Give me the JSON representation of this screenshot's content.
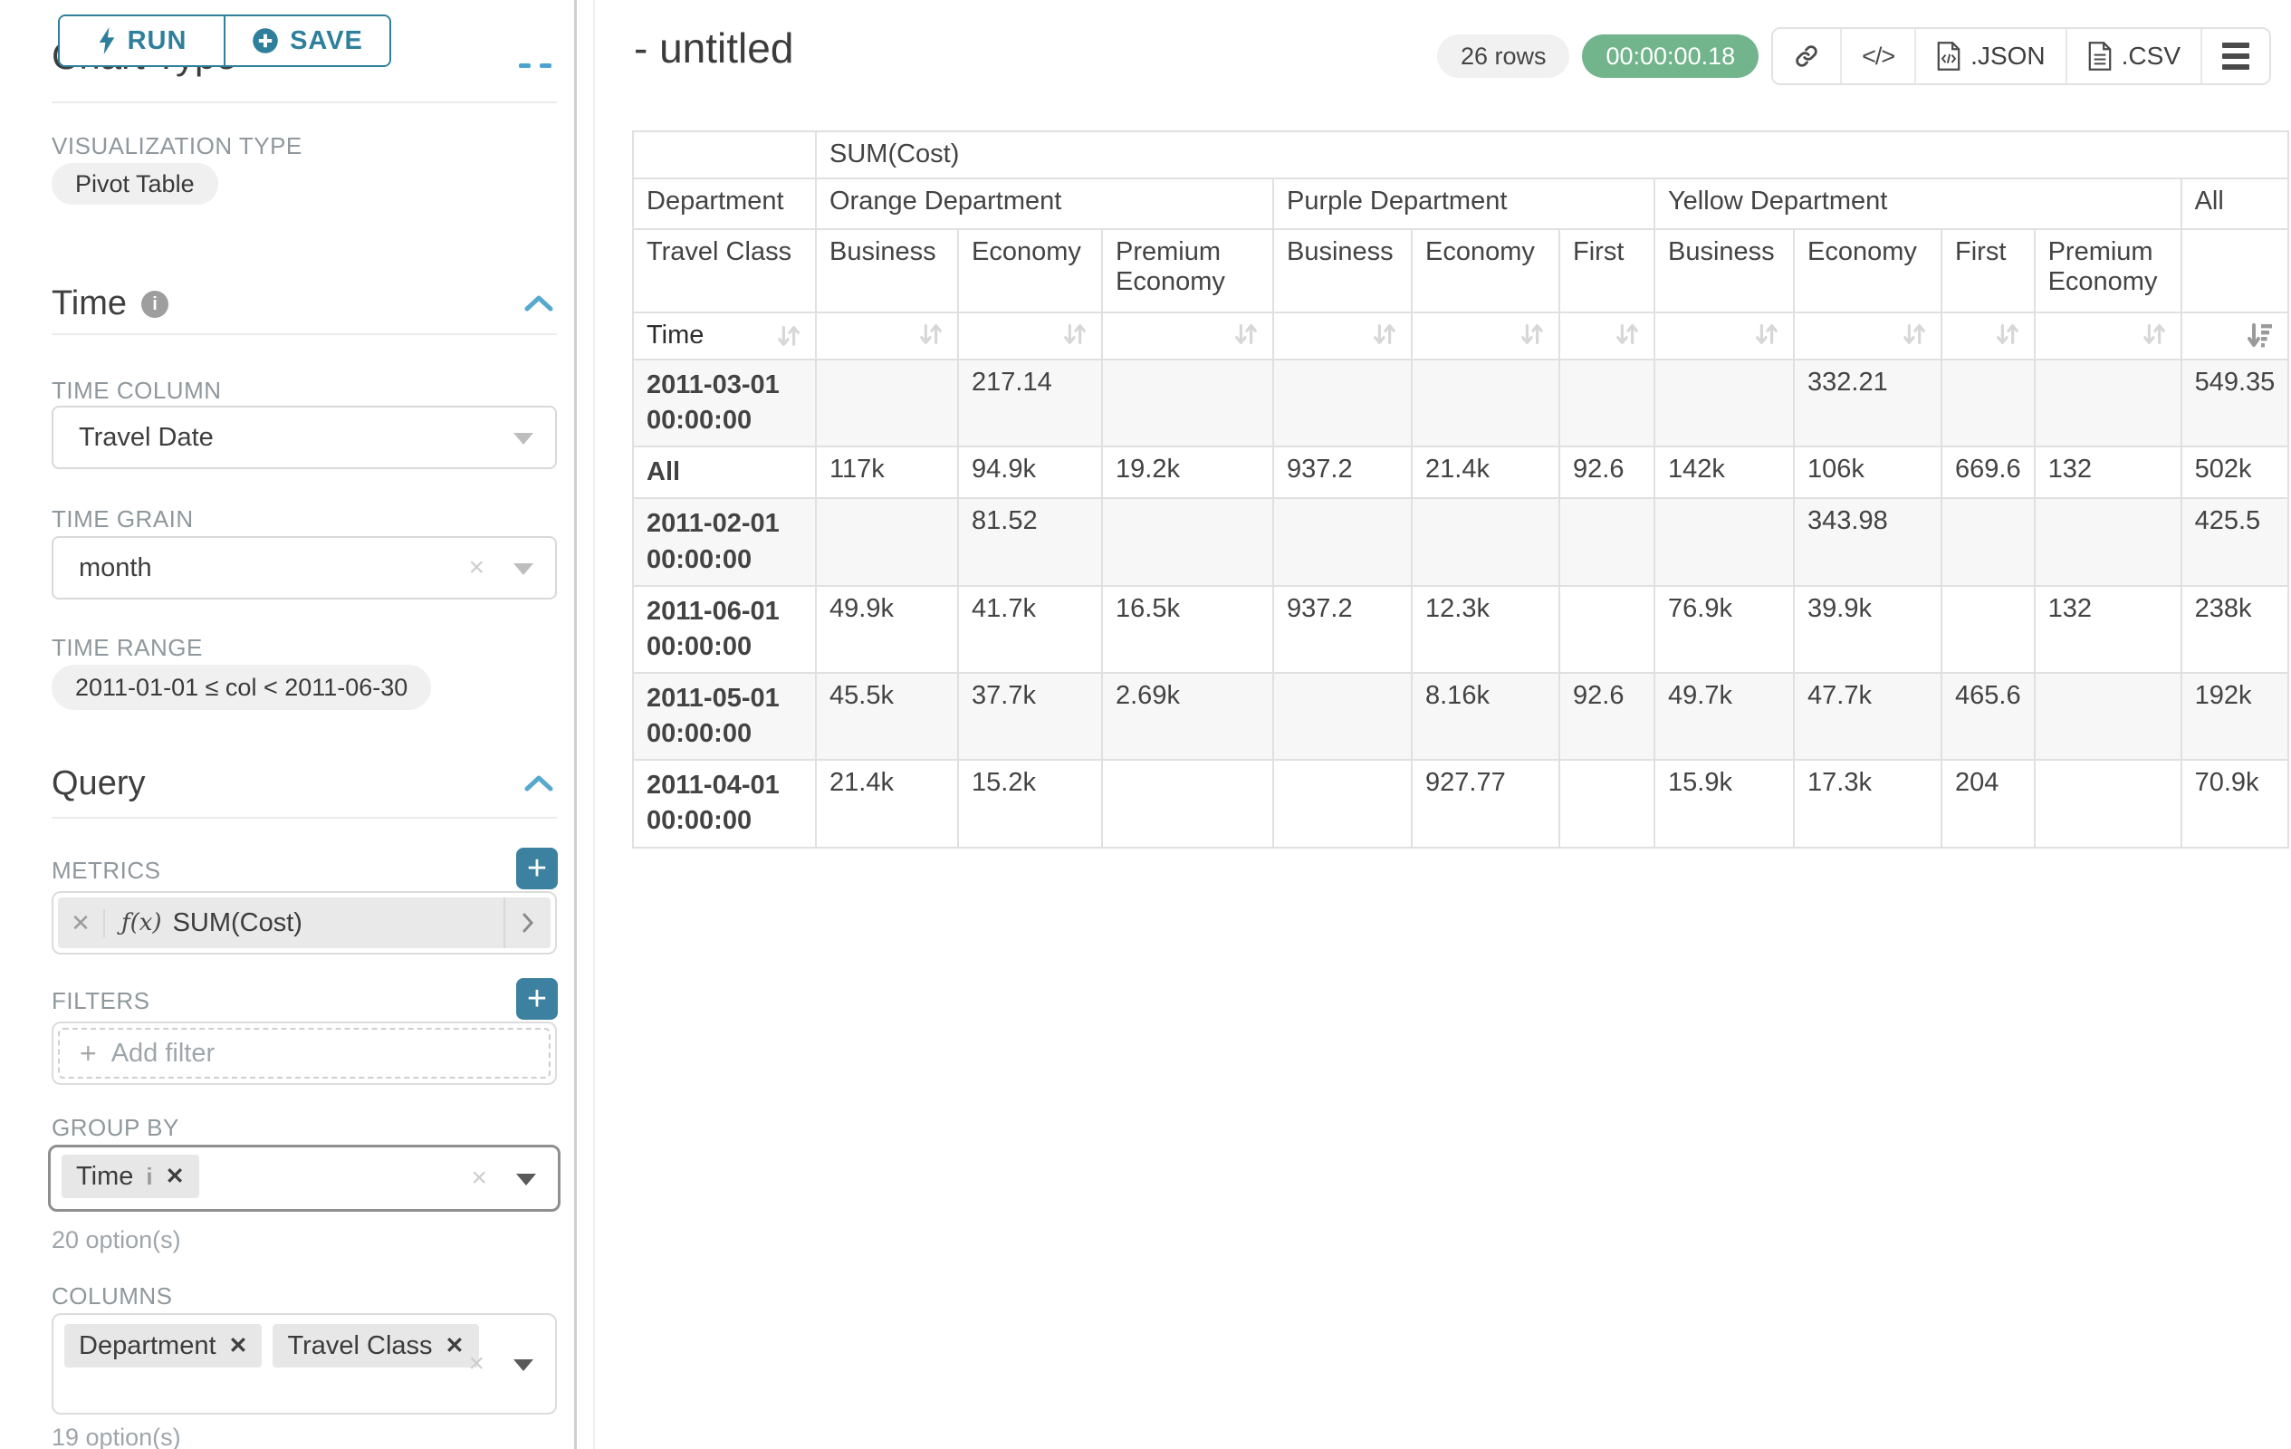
{
  "colors": {
    "accent_teal": "#2e7f9c",
    "accent_blue": "#57a8cf",
    "timer_green": "#72b48b"
  },
  "sidebar": {
    "run_label": "RUN",
    "save_label": "SAVE",
    "partial_heading": "Chart Type",
    "visualization_type": {
      "label": "VISUALIZATION TYPE",
      "value": "Pivot Table"
    },
    "time_section": {
      "title": "Time",
      "time_column": {
        "label": "TIME COLUMN",
        "value": "Travel Date"
      },
      "time_grain": {
        "label": "TIME GRAIN",
        "value": "month"
      },
      "time_range": {
        "label": "TIME RANGE",
        "value": "2011-01-01 ≤ col < 2011-06-30"
      }
    },
    "query_section": {
      "title": "Query",
      "metrics": {
        "label": "METRICS",
        "items": [
          {
            "prefix": "ƒ(x)",
            "name": "SUM(Cost)"
          }
        ]
      },
      "filters": {
        "label": "FILTERS",
        "placeholder": "Add filter"
      },
      "group_by": {
        "label": "GROUP BY",
        "items": [
          "Time"
        ],
        "hint": "20 option(s)"
      },
      "columns": {
        "label": "COLUMNS",
        "items": [
          "Department",
          "Travel Class"
        ],
        "hint": "19 option(s)"
      }
    }
  },
  "header": {
    "title": "- untitled",
    "row_count": "26 rows",
    "timer": "00:00:00.18",
    "export_json_label": ".JSON",
    "export_csv_label": ".CSV"
  },
  "chart_data": {
    "type": "table",
    "metric": "SUM(Cost)",
    "row_dimension": "Time",
    "column_dimensions": [
      "Department",
      "Travel Class"
    ],
    "corner_labels": [
      "Department",
      "Travel Class",
      "Time"
    ],
    "sorted_column": "All",
    "col_groups": [
      {
        "label": "Orange Department",
        "subcols": [
          "Business",
          "Economy",
          "Premium Economy"
        ]
      },
      {
        "label": "Purple Department",
        "subcols": [
          "Business",
          "Economy",
          "First"
        ]
      },
      {
        "label": "Yellow Department",
        "subcols": [
          "Business",
          "Economy",
          "First",
          "Premium Economy"
        ]
      },
      {
        "label": "All",
        "subcols": [
          ""
        ]
      }
    ],
    "rows": [
      {
        "label": "2011-03-01 00:00:00",
        "values": [
          "",
          "217.14",
          "",
          "",
          "",
          "",
          "",
          "332.21",
          "",
          "",
          "549.35"
        ]
      },
      {
        "label": "All",
        "values": [
          "117k",
          "94.9k",
          "19.2k",
          "937.2",
          "21.4k",
          "92.6",
          "142k",
          "106k",
          "669.6",
          "132",
          "502k"
        ]
      },
      {
        "label": "2011-02-01 00:00:00",
        "values": [
          "",
          "81.52",
          "",
          "",
          "",
          "",
          "",
          "343.98",
          "",
          "",
          "425.5"
        ]
      },
      {
        "label": "2011-06-01 00:00:00",
        "values": [
          "49.9k",
          "41.7k",
          "16.5k",
          "937.2",
          "12.3k",
          "",
          "76.9k",
          "39.9k",
          "",
          "132",
          "238k"
        ]
      },
      {
        "label": "2011-05-01 00:00:00",
        "values": [
          "45.5k",
          "37.7k",
          "2.69k",
          "",
          "8.16k",
          "92.6",
          "49.7k",
          "47.7k",
          "465.6",
          "",
          "192k"
        ]
      },
      {
        "label": "2011-04-01 00:00:00",
        "values": [
          "21.4k",
          "15.2k",
          "",
          "",
          "927.77",
          "",
          "15.9k",
          "17.3k",
          "204",
          "",
          "70.9k"
        ]
      }
    ]
  }
}
